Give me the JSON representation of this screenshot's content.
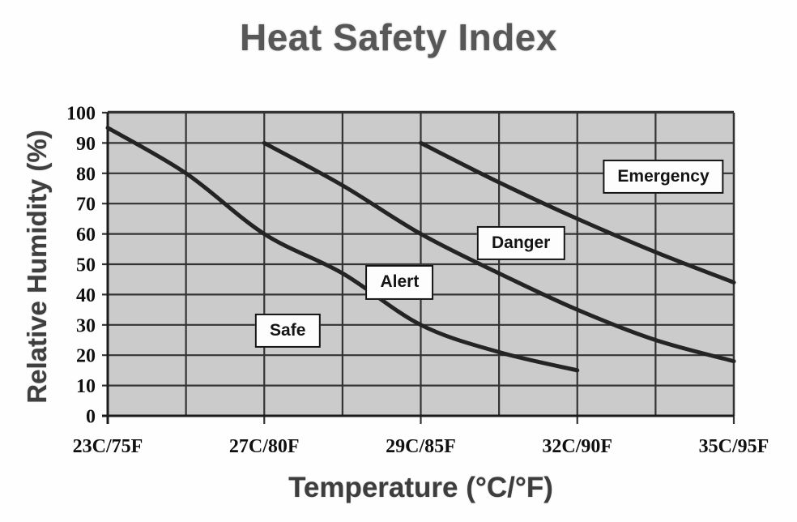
{
  "figure": {
    "title": "Heat Safety Index",
    "x_axis_title": "Temperature (°C/°F)",
    "y_axis_title": "Relative Humidity (%)"
  },
  "chart_data": {
    "type": "line",
    "title": "Heat Safety Index",
    "xlabel": "Temperature (°C/°F)",
    "ylabel": "Relative Humidity (%)",
    "x_tick_labels": [
      "23C/75F",
      "27C/80F",
      "29C/85F",
      "32C/90F",
      "35C/95F"
    ],
    "x_gridline_count": 9,
    "x_note": "x measured in half-division grid index: 0=23C/75F, 2=27C/80F, 4=29C/85F, 6=32C/90F, 8=35C/95F; unlabeled gridlines at odd indices",
    "ylim": [
      0,
      100
    ],
    "y_tick_step": 10,
    "grid": true,
    "legend": "none",
    "series": [
      {
        "name": "safe-alert-boundary",
        "points": [
          [
            0,
            95
          ],
          [
            1,
            80
          ],
          [
            2,
            60
          ],
          [
            3,
            47
          ],
          [
            4,
            30
          ],
          [
            5,
            21
          ],
          [
            6,
            15
          ]
        ]
      },
      {
        "name": "alert-danger-boundary",
        "points": [
          [
            2,
            90
          ],
          [
            3,
            76
          ],
          [
            4,
            60
          ],
          [
            5,
            47
          ],
          [
            6,
            35
          ],
          [
            7,
            25
          ],
          [
            8,
            18
          ]
        ]
      },
      {
        "name": "danger-emergency-boundary",
        "points": [
          [
            4,
            90
          ],
          [
            5,
            77
          ],
          [
            6,
            65
          ],
          [
            7,
            54
          ],
          [
            8,
            44
          ]
        ]
      }
    ],
    "zones": [
      {
        "label": "Safe",
        "x_index": 2.3,
        "humidity": 28
      },
      {
        "label": "Alert",
        "x_index": 3.73,
        "humidity": 44
      },
      {
        "label": "Danger",
        "x_index": 5.28,
        "humidity": 57
      },
      {
        "label": "Emergency",
        "x_index": 7.1,
        "humidity": 79
      }
    ],
    "colors": {
      "plot_bg": "#cbcbcb",
      "grid": "#333333",
      "axis": "#1b1b1b",
      "curve": "#242424",
      "tick_label": "#101010",
      "title": "#575757",
      "axis_title": "#3d3d3d",
      "zone_box_bg": "#fdfdfd",
      "zone_box_border": "#121212"
    }
  }
}
